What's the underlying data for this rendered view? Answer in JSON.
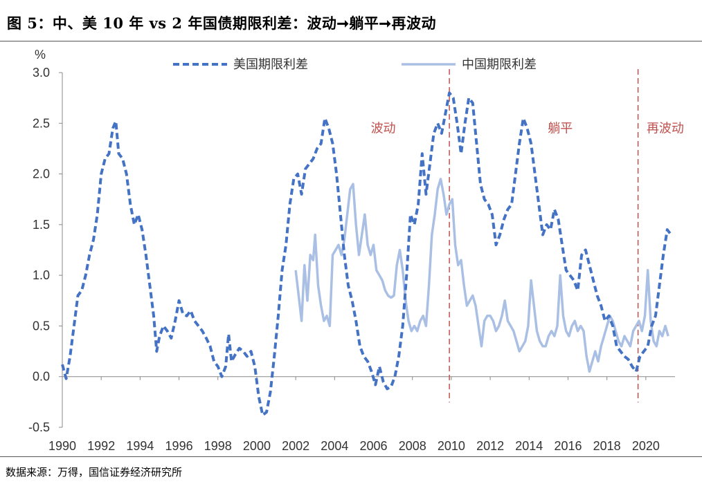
{
  "header": {
    "title": "图 5：中、美 10 年 vs 2 年国债期限利差：波动➞躺平➞再波动"
  },
  "footer": {
    "source": "数据来源：万得，国信证券经济研究所"
  },
  "chart_data": {
    "type": "line",
    "title": "图 5：中、美 10 年 vs 2 年国债期限利差：波动➞躺平➞再波动",
    "ylabel": "%",
    "xlabel": "",
    "ylim": [
      -0.5,
      3.0
    ],
    "xlim": [
      1990,
      2021.5
    ],
    "yticks": [
      -0.5,
      0.0,
      0.5,
      1.0,
      1.5,
      2.0,
      2.5,
      3.0
    ],
    "ytick_labels": [
      "-0.5",
      "0.0",
      "0.5",
      "1.0",
      "1.5",
      "2.0",
      "2.5",
      "3.0"
    ],
    "xticks": [
      1990,
      1992,
      1994,
      1996,
      1998,
      2000,
      2002,
      2004,
      2006,
      2008,
      2010,
      2012,
      2014,
      2016,
      2018,
      2020
    ],
    "xtick_labels": [
      "1990",
      "1992",
      "1994",
      "1996",
      "1998",
      "2000",
      "2002",
      "2004",
      "2006",
      "2008",
      "2010",
      "2012",
      "2014",
      "2016",
      "2018",
      "2020"
    ],
    "grid": false,
    "legend_position": "top",
    "series": [
      {
        "name": "美国期限利差",
        "color": "#4472c4",
        "style": "dashed",
        "points": [
          [
            1990.0,
            0.12
          ],
          [
            1990.2,
            -0.02
          ],
          [
            1990.4,
            0.2
          ],
          [
            1990.6,
            0.5
          ],
          [
            1990.8,
            0.8
          ],
          [
            1991.0,
            0.85
          ],
          [
            1991.2,
            1.0
          ],
          [
            1991.4,
            1.2
          ],
          [
            1991.6,
            1.35
          ],
          [
            1991.8,
            1.6
          ],
          [
            1992.0,
            2.0
          ],
          [
            1992.2,
            2.15
          ],
          [
            1992.4,
            2.2
          ],
          [
            1992.6,
            2.45
          ],
          [
            1992.75,
            2.52
          ],
          [
            1992.9,
            2.2
          ],
          [
            1993.1,
            2.15
          ],
          [
            1993.3,
            2.0
          ],
          [
            1993.5,
            1.7
          ],
          [
            1993.7,
            1.5
          ],
          [
            1993.9,
            1.6
          ],
          [
            1994.1,
            1.45
          ],
          [
            1994.3,
            1.2
          ],
          [
            1994.5,
            0.9
          ],
          [
            1994.7,
            0.6
          ],
          [
            1994.85,
            0.25
          ],
          [
            1995.0,
            0.4
          ],
          [
            1995.2,
            0.5
          ],
          [
            1995.4,
            0.45
          ],
          [
            1995.6,
            0.38
          ],
          [
            1995.8,
            0.55
          ],
          [
            1996.0,
            0.75
          ],
          [
            1996.2,
            0.62
          ],
          [
            1996.4,
            0.6
          ],
          [
            1996.6,
            0.65
          ],
          [
            1996.8,
            0.55
          ],
          [
            1997.0,
            0.5
          ],
          [
            1997.2,
            0.45
          ],
          [
            1997.4,
            0.38
          ],
          [
            1997.6,
            0.3
          ],
          [
            1997.8,
            0.15
          ],
          [
            1998.0,
            0.1
          ],
          [
            1998.2,
            0.0
          ],
          [
            1998.4,
            0.1
          ],
          [
            1998.55,
            0.42
          ],
          [
            1998.7,
            0.15
          ],
          [
            1998.9,
            0.22
          ],
          [
            1999.1,
            0.28
          ],
          [
            1999.3,
            0.25
          ],
          [
            1999.5,
            0.2
          ],
          [
            1999.7,
            0.25
          ],
          [
            1999.9,
            0.1
          ],
          [
            2000.1,
            -0.2
          ],
          [
            2000.3,
            -0.38
          ],
          [
            2000.5,
            -0.35
          ],
          [
            2000.7,
            -0.15
          ],
          [
            2000.9,
            0.2
          ],
          [
            2001.1,
            0.6
          ],
          [
            2001.3,
            1.05
          ],
          [
            2001.5,
            1.3
          ],
          [
            2001.7,
            1.7
          ],
          [
            2001.9,
            1.95
          ],
          [
            2002.1,
            2.0
          ],
          [
            2002.3,
            1.8
          ],
          [
            2002.5,
            2.05
          ],
          [
            2002.7,
            2.1
          ],
          [
            2002.9,
            2.15
          ],
          [
            2003.1,
            2.25
          ],
          [
            2003.3,
            2.3
          ],
          [
            2003.5,
            2.55
          ],
          [
            2003.7,
            2.45
          ],
          [
            2003.9,
            2.3
          ],
          [
            2004.1,
            2.0
          ],
          [
            2004.3,
            1.6
          ],
          [
            2004.5,
            1.2
          ],
          [
            2004.7,
            0.9
          ],
          [
            2004.9,
            0.75
          ],
          [
            2005.1,
            0.55
          ],
          [
            2005.3,
            0.3
          ],
          [
            2005.5,
            0.2
          ],
          [
            2005.7,
            0.15
          ],
          [
            2005.9,
            0.05
          ],
          [
            2006.1,
            -0.08
          ],
          [
            2006.3,
            0.1
          ],
          [
            2006.5,
            -0.05
          ],
          [
            2006.7,
            -0.12
          ],
          [
            2006.9,
            -0.1
          ],
          [
            2007.1,
            0.0
          ],
          [
            2007.3,
            0.2
          ],
          [
            2007.5,
            0.5
          ],
          [
            2007.7,
            1.0
          ],
          [
            2007.9,
            1.6
          ],
          [
            2008.1,
            1.5
          ],
          [
            2008.3,
            1.7
          ],
          [
            2008.5,
            2.2
          ],
          [
            2008.7,
            1.8
          ],
          [
            2008.9,
            2.1
          ],
          [
            2009.1,
            2.4
          ],
          [
            2009.3,
            2.5
          ],
          [
            2009.5,
            2.4
          ],
          [
            2009.7,
            2.6
          ],
          [
            2009.9,
            2.8
          ],
          [
            2010.1,
            2.75
          ],
          [
            2010.3,
            2.5
          ],
          [
            2010.5,
            2.2
          ],
          [
            2010.7,
            2.5
          ],
          [
            2010.9,
            2.75
          ],
          [
            2011.1,
            2.7
          ],
          [
            2011.3,
            2.3
          ],
          [
            2011.5,
            1.9
          ],
          [
            2011.7,
            1.75
          ],
          [
            2011.9,
            1.7
          ],
          [
            2012.1,
            1.6
          ],
          [
            2012.3,
            1.3
          ],
          [
            2012.5,
            1.4
          ],
          [
            2012.7,
            1.55
          ],
          [
            2012.9,
            1.65
          ],
          [
            2013.1,
            1.7
          ],
          [
            2013.3,
            2.0
          ],
          [
            2013.5,
            2.3
          ],
          [
            2013.7,
            2.55
          ],
          [
            2013.9,
            2.45
          ],
          [
            2014.1,
            2.3
          ],
          [
            2014.3,
            2.0
          ],
          [
            2014.5,
            1.7
          ],
          [
            2014.7,
            1.4
          ],
          [
            2014.9,
            1.5
          ],
          [
            2015.1,
            1.45
          ],
          [
            2015.3,
            1.65
          ],
          [
            2015.5,
            1.55
          ],
          [
            2015.7,
            1.3
          ],
          [
            2015.9,
            1.05
          ],
          [
            2016.1,
            1.0
          ],
          [
            2016.3,
            0.95
          ],
          [
            2016.5,
            0.85
          ],
          [
            2016.7,
            1.2
          ],
          [
            2016.9,
            1.25
          ],
          [
            2017.1,
            1.1
          ],
          [
            2017.3,
            0.95
          ],
          [
            2017.5,
            0.8
          ],
          [
            2017.7,
            0.7
          ],
          [
            2017.9,
            0.55
          ],
          [
            2018.1,
            0.6
          ],
          [
            2018.3,
            0.5
          ],
          [
            2018.5,
            0.3
          ],
          [
            2018.7,
            0.25
          ],
          [
            2018.9,
            0.2
          ],
          [
            2019.1,
            0.17
          ],
          [
            2019.3,
            0.1
          ],
          [
            2019.5,
            0.05
          ],
          [
            2019.7,
            0.2
          ],
          [
            2019.9,
            0.25
          ],
          [
            2020.1,
            0.3
          ],
          [
            2020.3,
            0.5
          ],
          [
            2020.5,
            0.6
          ],
          [
            2020.7,
            0.9
          ],
          [
            2020.9,
            1.2
          ],
          [
            2021.1,
            1.45
          ],
          [
            2021.3,
            1.4
          ]
        ]
      },
      {
        "name": "中国期限利差",
        "color": "#a9bfe4",
        "style": "solid",
        "points": [
          [
            2002.0,
            1.05
          ],
          [
            2002.15,
            0.8
          ],
          [
            2002.3,
            0.55
          ],
          [
            2002.45,
            1.1
          ],
          [
            2002.6,
            0.75
          ],
          [
            2002.75,
            1.2
          ],
          [
            2002.9,
            1.15
          ],
          [
            2003.0,
            1.4
          ],
          [
            2003.15,
            0.9
          ],
          [
            2003.3,
            0.7
          ],
          [
            2003.45,
            0.55
          ],
          [
            2003.6,
            0.6
          ],
          [
            2003.75,
            0.5
          ],
          [
            2003.9,
            1.2
          ],
          [
            2004.05,
            1.25
          ],
          [
            2004.2,
            1.3
          ],
          [
            2004.35,
            1.2
          ],
          [
            2004.5,
            1.35
          ],
          [
            2004.65,
            1.6
          ],
          [
            2004.8,
            1.85
          ],
          [
            2004.95,
            1.9
          ],
          [
            2005.1,
            1.5
          ],
          [
            2005.25,
            1.2
          ],
          [
            2005.4,
            1.4
          ],
          [
            2005.55,
            1.6
          ],
          [
            2005.7,
            1.3
          ],
          [
            2005.85,
            1.2
          ],
          [
            2006.0,
            1.3
          ],
          [
            2006.15,
            1.05
          ],
          [
            2006.3,
            1.0
          ],
          [
            2006.45,
            0.95
          ],
          [
            2006.6,
            0.85
          ],
          [
            2006.75,
            0.8
          ],
          [
            2006.9,
            0.78
          ],
          [
            2007.05,
            0.8
          ],
          [
            2007.2,
            1.1
          ],
          [
            2007.35,
            1.25
          ],
          [
            2007.5,
            1.05
          ],
          [
            2007.65,
            0.75
          ],
          [
            2007.8,
            0.55
          ],
          [
            2007.95,
            0.45
          ],
          [
            2008.1,
            0.5
          ],
          [
            2008.25,
            0.45
          ],
          [
            2008.4,
            0.55
          ],
          [
            2008.55,
            0.6
          ],
          [
            2008.7,
            0.5
          ],
          [
            2008.85,
            0.9
          ],
          [
            2009.0,
            1.4
          ],
          [
            2009.15,
            1.6
          ],
          [
            2009.3,
            1.85
          ],
          [
            2009.45,
            1.95
          ],
          [
            2009.6,
            1.8
          ],
          [
            2009.75,
            1.6
          ],
          [
            2009.9,
            1.7
          ],
          [
            2010.05,
            1.75
          ],
          [
            2010.2,
            1.3
          ],
          [
            2010.35,
            1.1
          ],
          [
            2010.5,
            1.15
          ],
          [
            2010.65,
            0.9
          ],
          [
            2010.8,
            0.7
          ],
          [
            2010.95,
            0.75
          ],
          [
            2011.1,
            0.8
          ],
          [
            2011.25,
            0.7
          ],
          [
            2011.4,
            0.5
          ],
          [
            2011.55,
            0.3
          ],
          [
            2011.7,
            0.55
          ],
          [
            2011.85,
            0.6
          ],
          [
            2012.0,
            0.6
          ],
          [
            2012.15,
            0.55
          ],
          [
            2012.3,
            0.45
          ],
          [
            2012.45,
            0.5
          ],
          [
            2012.6,
            0.6
          ],
          [
            2012.75,
            0.75
          ],
          [
            2012.9,
            0.55
          ],
          [
            2013.05,
            0.5
          ],
          [
            2013.2,
            0.45
          ],
          [
            2013.35,
            0.35
          ],
          [
            2013.5,
            0.25
          ],
          [
            2013.65,
            0.3
          ],
          [
            2013.8,
            0.35
          ],
          [
            2013.95,
            0.5
          ],
          [
            2014.1,
            0.95
          ],
          [
            2014.25,
            0.7
          ],
          [
            2014.4,
            0.45
          ],
          [
            2014.55,
            0.35
          ],
          [
            2014.7,
            0.3
          ],
          [
            2014.85,
            0.3
          ],
          [
            2015.0,
            0.4
          ],
          [
            2015.15,
            0.45
          ],
          [
            2015.3,
            0.4
          ],
          [
            2015.45,
            0.5
          ],
          [
            2015.6,
            1.0
          ],
          [
            2015.75,
            0.6
          ],
          [
            2015.9,
            0.45
          ],
          [
            2016.05,
            0.4
          ],
          [
            2016.2,
            0.5
          ],
          [
            2016.35,
            0.55
          ],
          [
            2016.5,
            0.45
          ],
          [
            2016.65,
            0.5
          ],
          [
            2016.8,
            0.45
          ],
          [
            2016.95,
            0.2
          ],
          [
            2017.1,
            0.05
          ],
          [
            2017.25,
            0.15
          ],
          [
            2017.4,
            0.25
          ],
          [
            2017.55,
            0.15
          ],
          [
            2017.7,
            0.3
          ],
          [
            2017.85,
            0.4
          ],
          [
            2018.0,
            0.5
          ],
          [
            2018.15,
            0.6
          ],
          [
            2018.3,
            0.55
          ],
          [
            2018.45,
            0.45
          ],
          [
            2018.6,
            0.35
          ],
          [
            2018.75,
            0.3
          ],
          [
            2018.9,
            0.4
          ],
          [
            2019.05,
            0.35
          ],
          [
            2019.2,
            0.3
          ],
          [
            2019.35,
            0.45
          ],
          [
            2019.5,
            0.5
          ],
          [
            2019.65,
            0.55
          ],
          [
            2019.8,
            0.45
          ],
          [
            2019.95,
            0.6
          ],
          [
            2020.1,
            1.05
          ],
          [
            2020.25,
            0.55
          ],
          [
            2020.4,
            0.35
          ],
          [
            2020.55,
            0.3
          ],
          [
            2020.7,
            0.45
          ],
          [
            2020.85,
            0.4
          ],
          [
            2021.0,
            0.5
          ],
          [
            2021.15,
            0.4
          ]
        ]
      }
    ],
    "annotations": [
      {
        "text": "波动",
        "x": 2006.5,
        "y": 2.45
      },
      {
        "text": "躺平",
        "x": 2015.6,
        "y": 2.45
      },
      {
        "text": "再波动",
        "x": 2021.0,
        "y": 2.45
      }
    ],
    "reference_lines": [
      {
        "x": 2009.9,
        "color": "#c0504d",
        "style": "dashed"
      },
      {
        "x": 2019.6,
        "color": "#c0504d",
        "style": "dashed"
      }
    ]
  }
}
